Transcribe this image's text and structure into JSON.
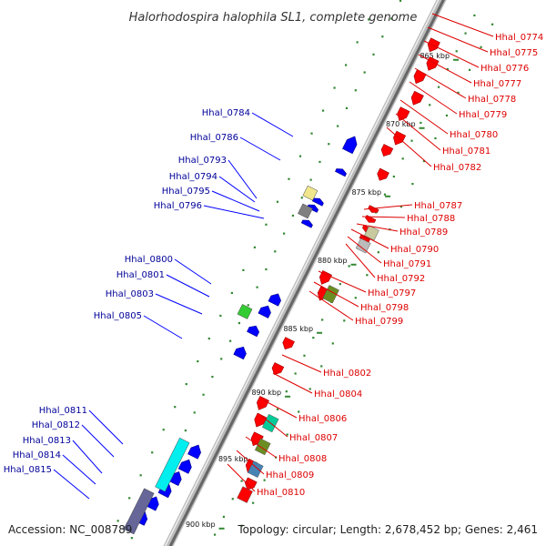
{
  "title": "Halorhodospira halophila SL1, complete genome",
  "accession": "Accession: NC_008789",
  "topology": "Topology: circular; Length: 2,678,452 bp; Genes: 2,461",
  "colors": {
    "forward": "#ff0000",
    "reverse": "#0000ff",
    "forward_label": "#dd0000",
    "reverse_label": "#000099",
    "tick": "#338833",
    "backbone": "#8c8c8c"
  },
  "scale_labels": [
    "865 kbp",
    "870 kbp",
    "875 kbp",
    "880 kbp",
    "885 kbp",
    "890 kbp",
    "895 kbp",
    "900 kbp"
  ],
  "reverse_labels": [
    "Hhal_0784",
    "Hhal_0786",
    "Hhal_0793",
    "Hhal_0794",
    "Hhal_0795",
    "Hhal_0796",
    "Hhal_0800",
    "Hhal_0801",
    "Hhal_0803",
    "Hhal_0805",
    "Hhal_0811",
    "Hhal_0812",
    "Hhal_0813",
    "Hhal_0814",
    "Hhal_0815"
  ],
  "forward_labels": [
    "Hhal_0774",
    "Hhal_0775",
    "Hhal_0776",
    "Hhal_0777",
    "Hhal_0778",
    "Hhal_0779",
    "Hhal_0780",
    "Hhal_0781",
    "Hhal_0782",
    "Hhal_0787",
    "Hhal_0788",
    "Hhal_0789",
    "Hhal_0790",
    "Hhal_0791",
    "Hhal_0792",
    "Hhal_0797",
    "Hhal_0798",
    "Hhal_0799",
    "Hhal_0802",
    "Hhal_0804",
    "Hhal_0806",
    "Hhal_0807",
    "Hhal_0808",
    "Hhal_0809",
    "Hhal_0810"
  ]
}
